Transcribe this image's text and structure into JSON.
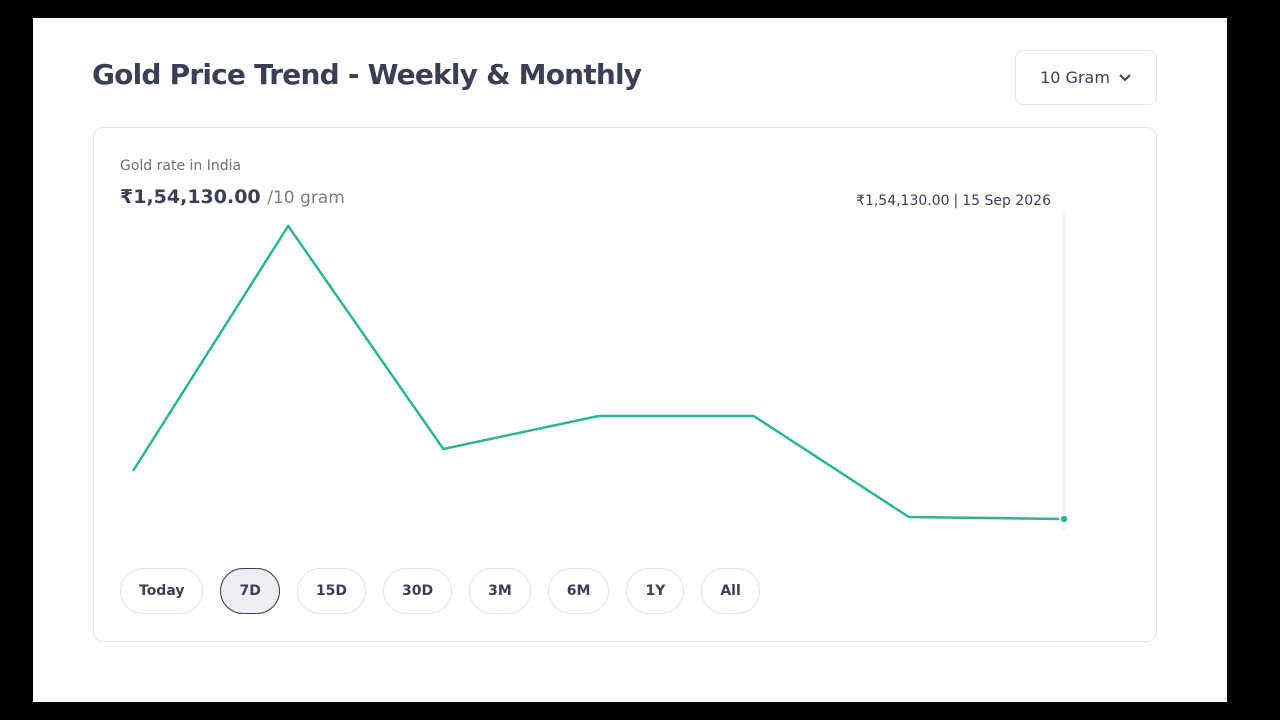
{
  "header": {
    "title": "Gold Price Trend - Weekly & Monthly",
    "weight_selector": "10 Gram"
  },
  "card": {
    "subtitle": "Gold rate in India",
    "price": "₹1,54,130.00",
    "unit": "/10 gram"
  },
  "chart_data": {
    "type": "line",
    "categories": [
      null,
      null,
      null,
      null,
      null,
      null,
      "15 Sep 2026"
    ],
    "values": [
      155090,
      159990,
      155530,
      156190,
      156190,
      154170,
      154130
    ],
    "value_labels": [
      null,
      null,
      null,
      null,
      null,
      null,
      "₹1,54,130.00"
    ],
    "color": "#2bb594"
  },
  "ranges": {
    "options": [
      "Today",
      "7D",
      "15D",
      "30D",
      "3M",
      "6M",
      "1Y",
      "All"
    ],
    "selected_index": 1
  }
}
